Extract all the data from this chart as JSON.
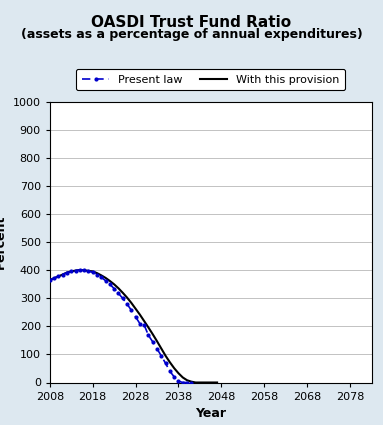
{
  "title_line1": "OASDI Trust Fund Ratio",
  "title_line2": "(assets as a percentage of annual expenditures)",
  "xlabel": "Year",
  "ylabel": "Percent",
  "xlim": [
    2008,
    2083
  ],
  "ylim": [
    0,
    1000
  ],
  "yticks": [
    0,
    100,
    200,
    300,
    400,
    500,
    600,
    700,
    800,
    900,
    1000
  ],
  "xticks": [
    2008,
    2018,
    2028,
    2038,
    2048,
    2058,
    2068,
    2078
  ],
  "background_color": "#dde8f0",
  "plot_background_color": "#ffffff",
  "present_law_color": "#0000cc",
  "provision_color": "#000000",
  "present_law_label": "Present law",
  "provision_label": "With this provision",
  "present_law_x": [
    2008,
    2009,
    2010,
    2011,
    2012,
    2013,
    2014,
    2015,
    2016,
    2017,
    2018,
    2019,
    2020,
    2021,
    2022,
    2023,
    2024,
    2025,
    2026,
    2027,
    2028,
    2029,
    2030,
    2031,
    2032,
    2033,
    2034,
    2035,
    2036,
    2037,
    2038,
    2039,
    2040,
    2041
  ],
  "present_law_y": [
    365,
    372,
    378,
    385,
    392,
    396,
    399,
    401,
    400,
    397,
    393,
    385,
    375,
    363,
    350,
    335,
    318,
    300,
    280,
    258,
    234,
    210,
    205,
    168,
    145,
    120,
    95,
    68,
    40,
    20,
    5,
    0,
    0,
    0
  ],
  "provision_x": [
    2008,
    2009,
    2010,
    2011,
    2012,
    2013,
    2014,
    2015,
    2016,
    2017,
    2018,
    2019,
    2020,
    2021,
    2022,
    2023,
    2024,
    2025,
    2026,
    2027,
    2028,
    2029,
    2030,
    2031,
    2032,
    2033,
    2034,
    2035,
    2036,
    2037,
    2038,
    2039,
    2040,
    2041,
    2042,
    2043,
    2044,
    2045,
    2046,
    2047
  ],
  "provision_y": [
    365,
    372,
    378,
    385,
    392,
    396,
    399,
    401,
    400,
    398,
    396,
    390,
    382,
    373,
    362,
    350,
    336,
    320,
    303,
    284,
    263,
    242,
    219,
    196,
    172,
    147,
    121,
    95,
    72,
    51,
    33,
    18,
    8,
    3,
    0,
    0,
    0,
    0,
    0,
    0
  ]
}
